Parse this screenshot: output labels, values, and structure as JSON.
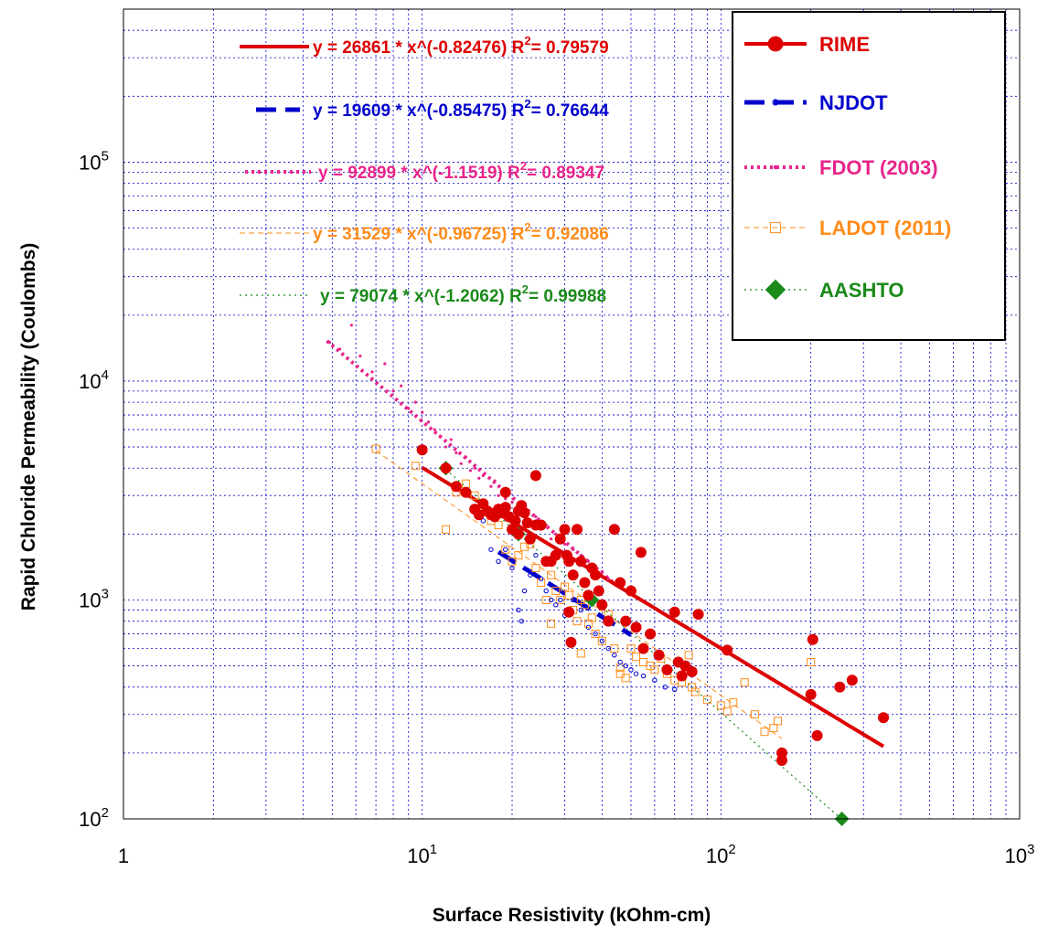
{
  "chart_data": {
    "type": "scatter",
    "xlabel": "Surface Resistivity (kOhm-cm)",
    "ylabel": "Rapid Chloride Permeability (Coulombs)",
    "xscale": "log",
    "yscale": "log",
    "xlim": [
      1,
      1000
    ],
    "ylim": [
      100,
      500000
    ],
    "grid": true,
    "legend_position": "top-right",
    "x_ticks": [
      {
        "value": 1,
        "base": "1",
        "exp": ""
      },
      {
        "value": 10,
        "base": "10",
        "exp": "1"
      },
      {
        "value": 100,
        "base": "10",
        "exp": "2"
      },
      {
        "value": 1000,
        "base": "10",
        "exp": "3"
      }
    ],
    "y_ticks": [
      {
        "value": 100,
        "base": "10",
        "exp": "2"
      },
      {
        "value": 1000,
        "base": "10",
        "exp": "3"
      },
      {
        "value": 10000,
        "base": "10",
        "exp": "4"
      },
      {
        "value": 100000,
        "base": "10",
        "exp": "5"
      }
    ],
    "series": [
      {
        "name": "RIME",
        "color": "#dd0000",
        "marker": "circle",
        "line_style": "solid",
        "fit": {
          "a": 26861,
          "b": -0.82476,
          "x_range": [
            10,
            350
          ]
        },
        "equation": {
          "text": "y = 26861 * x^(-0.82476)",
          "r_label": "R",
          "r_exp": "2",
          "r_value": "= 0.79579"
        },
        "points": [
          [
            10,
            4850
          ],
          [
            12,
            4000
          ],
          [
            13,
            3300
          ],
          [
            14,
            3100
          ],
          [
            15,
            2600
          ],
          [
            15.5,
            2450
          ],
          [
            16,
            2750
          ],
          [
            16.5,
            2550
          ],
          [
            17,
            2450
          ],
          [
            17.5,
            2400
          ],
          [
            18,
            2600
          ],
          [
            18.5,
            2500
          ],
          [
            19,
            2650
          ],
          [
            19.5,
            2400
          ],
          [
            20,
            2100
          ],
          [
            20.5,
            2300
          ],
          [
            21,
            2000
          ],
          [
            21.5,
            2700
          ],
          [
            22,
            2500
          ],
          [
            22.5,
            2250
          ],
          [
            23,
            1900
          ],
          [
            24,
            3700
          ],
          [
            25,
            2200
          ],
          [
            26,
            1500
          ],
          [
            27,
            1500
          ],
          [
            28,
            1600
          ],
          [
            29,
            1900
          ],
          [
            30,
            2100
          ],
          [
            30.5,
            1600
          ],
          [
            31,
            1500
          ],
          [
            32,
            1300
          ],
          [
            33,
            2100
          ],
          [
            34,
            1500
          ],
          [
            35,
            1200
          ],
          [
            36,
            1050
          ],
          [
            37,
            1400
          ],
          [
            38,
            1300
          ],
          [
            39,
            1100
          ],
          [
            40,
            950
          ],
          [
            42,
            800
          ],
          [
            44,
            2100
          ],
          [
            46,
            1200
          ],
          [
            48,
            800
          ],
          [
            50,
            1100
          ],
          [
            52,
            750
          ],
          [
            54,
            1650
          ],
          [
            55,
            600
          ],
          [
            58,
            700
          ],
          [
            62,
            560
          ],
          [
            66,
            480
          ],
          [
            70,
            880
          ],
          [
            72,
            520
          ],
          [
            74,
            450
          ],
          [
            76,
            500
          ],
          [
            80,
            470
          ],
          [
            84,
            860
          ],
          [
            105,
            590
          ],
          [
            160,
            200
          ],
          [
            160,
            185
          ],
          [
            200,
            370
          ],
          [
            203,
            660
          ],
          [
            210,
            240
          ],
          [
            250,
            400
          ],
          [
            275,
            430
          ],
          [
            350,
            290
          ],
          [
            31,
            880
          ],
          [
            31.5,
            640
          ],
          [
            19,
            3100
          ],
          [
            21,
            2550
          ],
          [
            24,
            2200
          ]
        ]
      },
      {
        "name": "NJDOT",
        "color": "#0000cc",
        "marker": "small-circle",
        "line_style": "dashed",
        "fit": {
          "a": 19609,
          "b": -0.85475,
          "x_range": [
            18,
            50
          ]
        },
        "equation": {
          "text": "y = 19609 * x^(-0.85475)",
          "r_label": "R",
          "r_exp": "2",
          "r_value": "= 0.76644"
        },
        "points": [
          [
            16,
            2300
          ],
          [
            17,
            1700
          ],
          [
            18,
            1500
          ],
          [
            19,
            1700
          ],
          [
            20,
            1400
          ],
          [
            21,
            900
          ],
          [
            21.5,
            800
          ],
          [
            22,
            1100
          ],
          [
            23,
            1300
          ],
          [
            24,
            1600
          ],
          [
            25,
            1250
          ],
          [
            26,
            1100
          ],
          [
            27,
            1000
          ],
          [
            28,
            950
          ],
          [
            29,
            1000
          ],
          [
            30,
            850
          ],
          [
            32,
            1000
          ],
          [
            34,
            900
          ],
          [
            36,
            750
          ],
          [
            38,
            700
          ],
          [
            40,
            650
          ],
          [
            42,
            600
          ],
          [
            44,
            560
          ],
          [
            46,
            520
          ],
          [
            48,
            500
          ],
          [
            50,
            480
          ],
          [
            52,
            460
          ],
          [
            55,
            450
          ],
          [
            60,
            430
          ],
          [
            65,
            400
          ],
          [
            70,
            390
          ]
        ]
      },
      {
        "name": "FDOT (2003)",
        "color": "#e8248a",
        "marker": "dot",
        "line_style": "dotted",
        "fit": {
          "a": 92899,
          "b": -1.1519,
          "x_range": [
            4.8,
            45
          ]
        },
        "equation": {
          "text": "y = 92899 * x^(-1.1519)",
          "r_label": "R",
          "r_exp": "2",
          "r_value": "= 0.89347"
        },
        "points": [
          [
            4.9,
            15000
          ],
          [
            5.3,
            14000
          ],
          [
            5.8,
            18000
          ],
          [
            6.2,
            13000
          ],
          [
            6.8,
            11000
          ],
          [
            7.5,
            12000
          ],
          [
            8,
            9000
          ],
          [
            8.5,
            9500
          ],
          [
            9,
            7500
          ],
          [
            9.5,
            8000
          ],
          [
            10,
            7200
          ],
          [
            10.5,
            6500
          ],
          [
            11,
            6000
          ],
          [
            11.5,
            5600
          ],
          [
            12,
            5000
          ],
          [
            12.5,
            5400
          ],
          [
            13,
            4700
          ],
          [
            13.5,
            4200
          ],
          [
            14,
            4500
          ],
          [
            14.5,
            3900
          ],
          [
            15,
            4000
          ],
          [
            15.5,
            3600
          ],
          [
            16,
            3700
          ],
          [
            17,
            3300
          ],
          [
            17.5,
            3500
          ],
          [
            18,
            3000
          ],
          [
            19,
            2900
          ],
          [
            19.5,
            3100
          ],
          [
            20,
            2800
          ],
          [
            21,
            2600
          ],
          [
            22,
            2500
          ],
          [
            23,
            2300
          ],
          [
            24,
            2400
          ],
          [
            25,
            2100
          ],
          [
            26,
            2200
          ],
          [
            27,
            1900
          ],
          [
            28,
            2000
          ],
          [
            30,
            1800
          ],
          [
            32,
            1700
          ],
          [
            34,
            1600
          ],
          [
            36,
            1500
          ],
          [
            38,
            1400
          ],
          [
            40,
            1350
          ],
          [
            42,
            1250
          ],
          [
            45,
            1200
          ]
        ]
      },
      {
        "name": "LADOT (2011)",
        "color": "#ff8c1a",
        "marker": "open-square",
        "line_style": "dashed-thin",
        "fit": {
          "a": 31529,
          "b": -0.96725,
          "x_range": [
            7,
            160
          ]
        },
        "equation": {
          "text": "y = 31529 * x^(-0.96725)",
          "r_label": "R",
          "r_exp": "2",
          "r_value": "= 0.92086"
        },
        "points": [
          [
            7,
            4900
          ],
          [
            9.5,
            4100
          ],
          [
            12,
            2100
          ],
          [
            13,
            3100
          ],
          [
            14,
            3400
          ],
          [
            15,
            3000
          ],
          [
            16,
            2600
          ],
          [
            17,
            2300
          ],
          [
            18,
            2200
          ],
          [
            19,
            1700
          ],
          [
            20,
            1500
          ],
          [
            21,
            1600
          ],
          [
            22,
            1750
          ],
          [
            23,
            1800
          ],
          [
            24,
            1400
          ],
          [
            25,
            1200
          ],
          [
            26,
            1000
          ],
          [
            27,
            1300
          ],
          [
            28,
            1100
          ],
          [
            29,
            1000
          ],
          [
            30,
            1150
          ],
          [
            31,
            1050
          ],
          [
            32,
            900
          ],
          [
            33,
            800
          ],
          [
            34,
            1000
          ],
          [
            35,
            950
          ],
          [
            36,
            780
          ],
          [
            37,
            830
          ],
          [
            38,
            700
          ],
          [
            40,
            650
          ],
          [
            42,
            860
          ],
          [
            44,
            600
          ],
          [
            46,
            490
          ],
          [
            48,
            440
          ],
          [
            50,
            600
          ],
          [
            52,
            550
          ],
          [
            55,
            520
          ],
          [
            58,
            500
          ],
          [
            60,
            480
          ],
          [
            63,
            540
          ],
          [
            66,
            460
          ],
          [
            70,
            430
          ],
          [
            74,
            420
          ],
          [
            78,
            560
          ],
          [
            80,
            400
          ],
          [
            82,
            380
          ],
          [
            90,
            350
          ],
          [
            100,
            330
          ],
          [
            105,
            310
          ],
          [
            110,
            340
          ],
          [
            120,
            420
          ],
          [
            130,
            300
          ],
          [
            140,
            250
          ],
          [
            150,
            260
          ],
          [
            155,
            280
          ],
          [
            200,
            520
          ],
          [
            27,
            780
          ],
          [
            34,
            570
          ],
          [
            46,
            460
          ]
        ]
      },
      {
        "name": "AASHTO",
        "color": "#1a8a1a",
        "marker": "diamond",
        "line_style": "dotted-thin",
        "fit": {
          "a": 79074,
          "b": -1.2062,
          "x_range": [
            12,
            254
          ]
        },
        "equation": {
          "text": "y = 79074 * x^(-1.2062)",
          "r_label": "R",
          "r_exp": "2",
          "r_value": "= 0.99988"
        },
        "points": [
          [
            12,
            4000
          ],
          [
            21,
            2000
          ],
          [
            37,
            1000
          ],
          [
            254,
            100
          ]
        ]
      }
    ]
  }
}
